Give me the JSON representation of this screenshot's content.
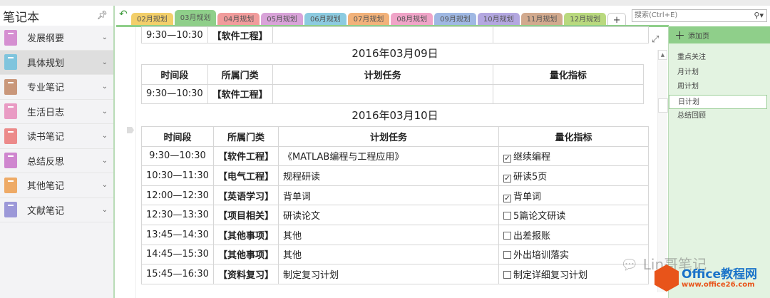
{
  "sidebar": {
    "title": "笔记本",
    "notebooks": [
      {
        "label": "发展纲要",
        "color": "#d58fd1"
      },
      {
        "label": "具体规划",
        "color": "#7fc4dd",
        "selected": true
      },
      {
        "label": "专业笔记",
        "color": "#c9977a"
      },
      {
        "label": "生活日志",
        "color": "#e99bc4"
      },
      {
        "label": "读书笔记",
        "color": "#ec8a8a"
      },
      {
        "label": "总结反思",
        "color": "#cf86cf"
      },
      {
        "label": "其他笔记",
        "color": "#eeaa66"
      },
      {
        "label": "文献笔记",
        "color": "#9c98d8"
      }
    ]
  },
  "sections": [
    {
      "label": "02月规划",
      "color": "#f3cf6a"
    },
    {
      "label": "03月规划",
      "color": "#8fcf8a",
      "selected": true
    },
    {
      "label": "04月规划",
      "color": "#f19c9c"
    },
    {
      "label": "05月规划",
      "color": "#d9a3d9"
    },
    {
      "label": "06月规划",
      "color": "#8ccbe0"
    },
    {
      "label": "07月规划",
      "color": "#f2b27a"
    },
    {
      "label": "08月规划",
      "color": "#f0a4c8"
    },
    {
      "label": "09月规划",
      "color": "#9fb8e3"
    },
    {
      "label": "10月规划",
      "color": "#b3a7e0"
    },
    {
      "label": "11月规划",
      "color": "#d2aa8e"
    },
    {
      "label": "12月规划",
      "color": "#b9d97e"
    }
  ],
  "add_section": "+",
  "search": {
    "placeholder": "搜索(Ctrl+E)"
  },
  "pages": {
    "add_label": "添加页",
    "items": [
      "重点关注",
      "月计划",
      "周计划",
      "日计划",
      "总结回顾"
    ],
    "selected": "日计划"
  },
  "content": {
    "prev_row": [
      "9:30—10:30",
      "【软件工程】",
      "",
      ""
    ],
    "headers": [
      "时间段",
      "所属门类",
      "计划任务",
      "量化指标"
    ],
    "day1": {
      "date": "2016年03月09日",
      "rows": [
        [
          "9:30—10:30",
          "【软件工程】",
          "",
          ""
        ]
      ]
    },
    "day2": {
      "date": "2016年03月10日",
      "rows": [
        {
          "time": "9:30—10:30",
          "cat": "【软件工程】",
          "task": "《MATLAB编程与工程应用》",
          "metric": "继续编程",
          "checked": true
        },
        {
          "time": "10:30—11:30",
          "cat": "【电气工程】",
          "task": "规程研读",
          "metric": "研读5页",
          "checked": true
        },
        {
          "time": "12:00—12:30",
          "cat": "【英语学习】",
          "task": "背单词",
          "metric": "背单词",
          "checked": true
        },
        {
          "time": "12:30—13:30",
          "cat": "【项目相关】",
          "task": "研读论文",
          "metric": "5篇论文研读",
          "checked": false
        },
        {
          "time": "13:45—14:30",
          "cat": "【其他事项】",
          "task": "其他",
          "metric": "出差报账",
          "checked": false
        },
        {
          "time": "14:45—15:30",
          "cat": "【其他事项】",
          "task": "其他",
          "metric": "外出培训落实",
          "checked": false
        },
        {
          "time": "15:45—16:30",
          "cat": "【资料复习】",
          "task": "制定复习计划",
          "metric": "制定详细复习计划",
          "checked": false
        }
      ]
    }
  },
  "watermark": {
    "wechat": "Lin哥笔记",
    "brand": "Office教程网",
    "url": "www.office26.com"
  }
}
